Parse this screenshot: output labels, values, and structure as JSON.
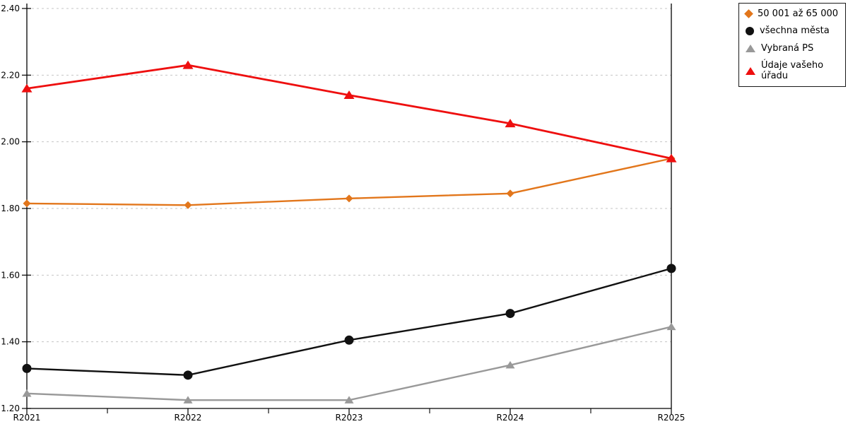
{
  "chart_data": {
    "type": "line",
    "categories": [
      "R2021",
      "R2022",
      "R2023",
      "R2024",
      "R2025"
    ],
    "series": [
      {
        "name": "50 001 až 65 000",
        "color": "#E2761B",
        "marker": "diamond",
        "values": [
          1.815,
          1.81,
          1.83,
          1.845,
          1.95
        ]
      },
      {
        "name": "všechna města",
        "color": "#111111",
        "marker": "circle",
        "values": [
          1.32,
          1.3,
          1.405,
          1.485,
          1.62
        ]
      },
      {
        "name": "Vybraná PS",
        "color": "#999999",
        "marker": "triangle",
        "values": [
          1.245,
          1.225,
          1.225,
          1.33,
          1.445
        ]
      },
      {
        "name": "Údaje vašeho úřadu",
        "color": "#EE0F0F",
        "marker": "triangle",
        "values": [
          2.16,
          2.23,
          2.14,
          2.055,
          1.95
        ]
      }
    ],
    "title": "",
    "xlabel": "",
    "ylabel": "",
    "ylim": [
      1.2,
      2.4
    ],
    "yticks": [
      "1.20",
      "1.40",
      "1.60",
      "1.80",
      "2.00",
      "2.20",
      "2.40"
    ],
    "grid": "horizontal-dashed",
    "grid_color": "#C4C4C4",
    "axis_color": "#000000",
    "legend_position": "top-right"
  }
}
